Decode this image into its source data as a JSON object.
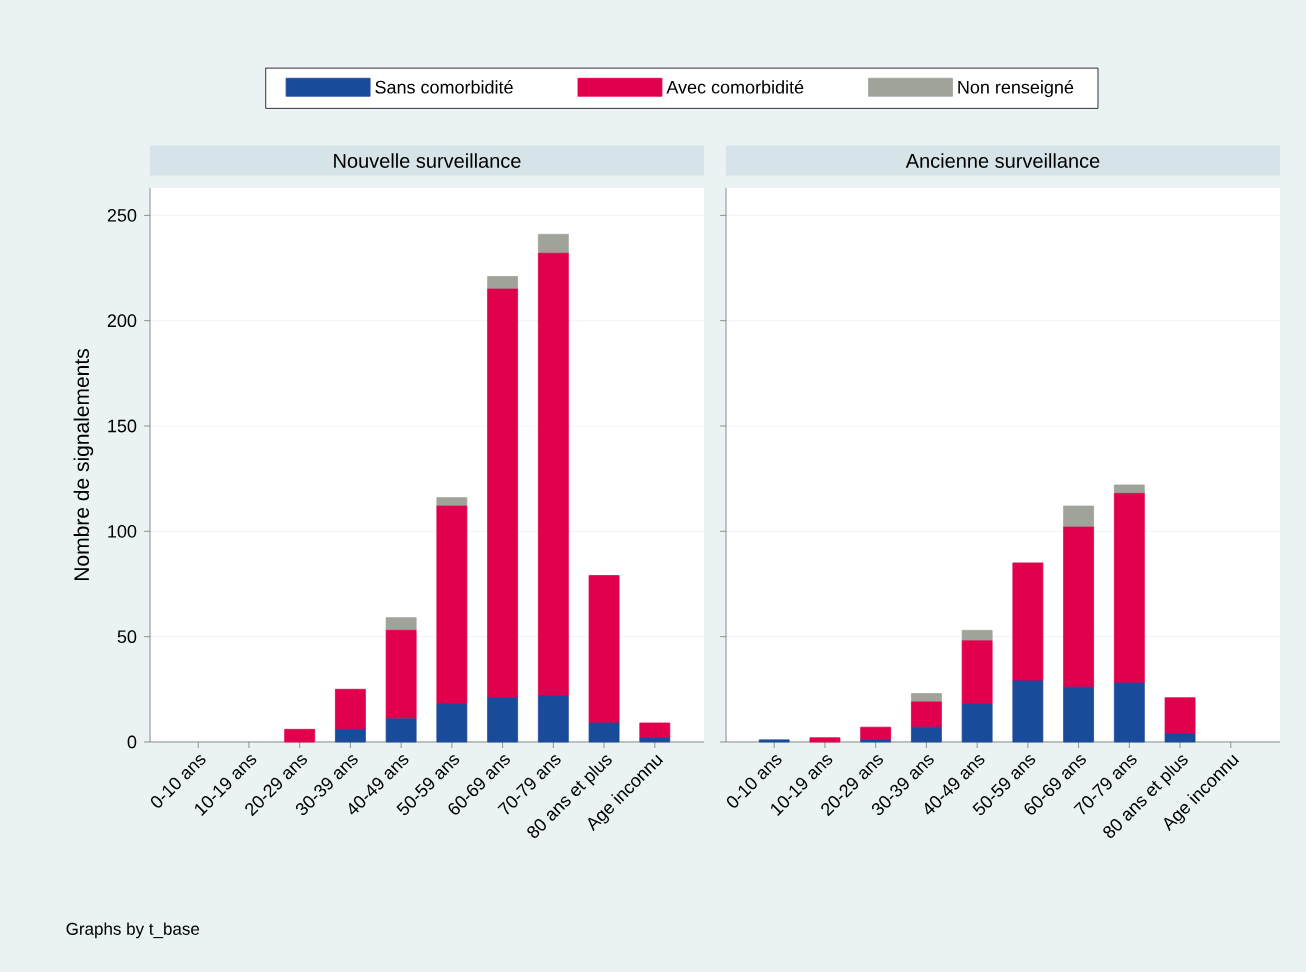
{
  "chart_data": [
    {
      "type": "bar",
      "title": "Nouvelle surveillance",
      "ylabel": "Nombre de signalements",
      "stacked": true,
      "grid": "y",
      "legend": "top",
      "categories": [
        "0-10 ans",
        "10-19 ans",
        "20-29 ans",
        "30-39 ans",
        "40-49 ans",
        "50-59 ans",
        "60-69 ans",
        "70-79 ans",
        "80 ans et plus",
        "Age inconnu"
      ],
      "ylim": [
        0,
        263
      ],
      "yticks": [
        0,
        50,
        100,
        150,
        200,
        250
      ],
      "series": [
        {
          "name": "Sans comorbidité",
          "color": "#1a4a9a",
          "values": [
            0,
            0,
            0,
            6,
            11,
            18,
            21,
            22,
            9,
            2
          ]
        },
        {
          "name": "Avec comorbidité",
          "color": "#e0004d",
          "values": [
            0,
            0,
            6,
            19,
            42,
            94,
            194,
            210,
            70,
            7
          ]
        },
        {
          "name": "Non renseigné",
          "color": "#a0a39a",
          "values": [
            0,
            0,
            0,
            0,
            6,
            4,
            6,
            9,
            0,
            0
          ]
        }
      ],
      "annotations": [
        "Graphs by t_base"
      ]
    },
    {
      "type": "bar",
      "title": "Ancienne surveillance",
      "stacked": true,
      "grid": "y",
      "tick_labels": "x",
      "categories": [
        "0-10 ans",
        "10-19 ans",
        "20-29 ans",
        "30-39 ans",
        "40-49 ans",
        "50-59 ans",
        "60-69 ans",
        "70-79 ans",
        "80 ans et plus",
        "Age inconnu"
      ],
      "ylim": [
        0,
        263
      ],
      "yticks": [
        0,
        50,
        100,
        150,
        200,
        250
      ],
      "series": [
        {
          "color": "#1a4a9a",
          "values": [
            1,
            0,
            1,
            7,
            18,
            29,
            26,
            28,
            4,
            0
          ]
        },
        {
          "color": "#e0004d",
          "values": [
            0,
            2,
            6,
            12,
            30,
            56,
            76,
            90,
            17,
            0
          ]
        },
        {
          "color": "#a0a39a",
          "values": [
            0,
            0,
            0,
            4,
            5,
            0,
            10,
            4,
            0,
            0
          ]
        }
      ]
    }
  ]
}
